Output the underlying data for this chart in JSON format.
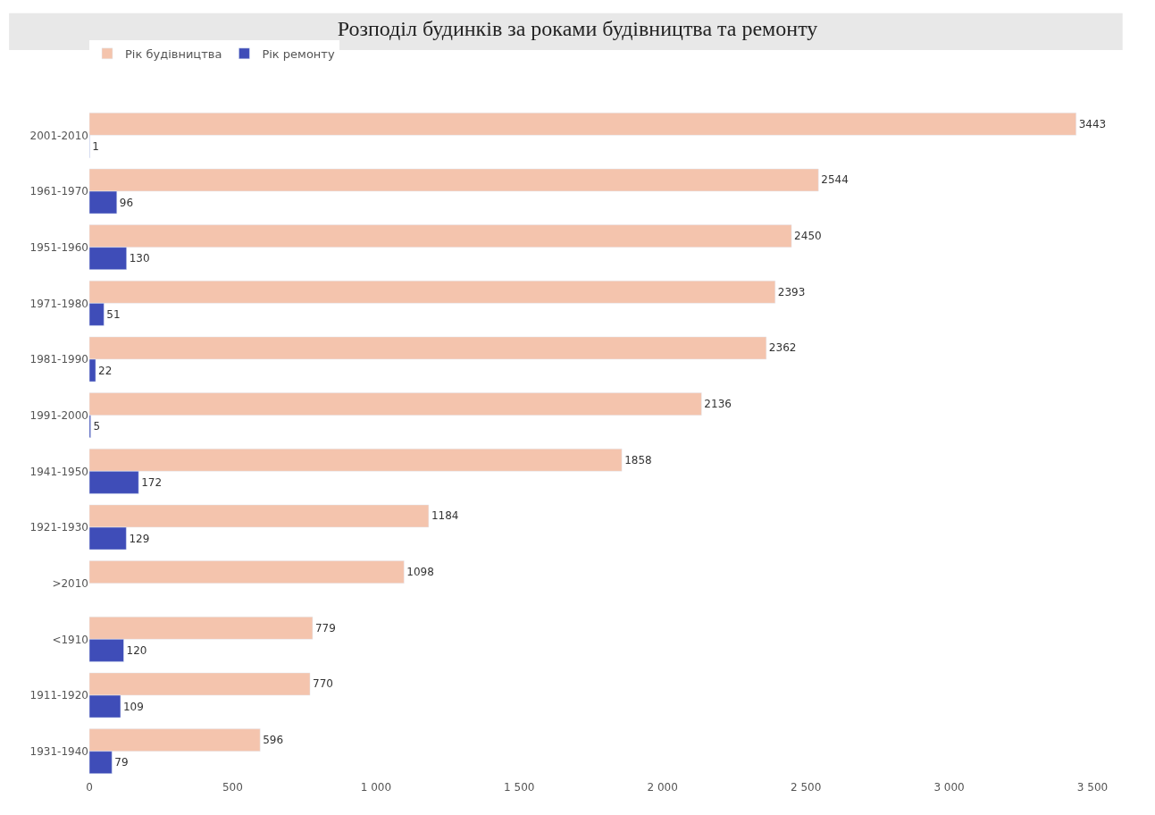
{
  "chart_data": {
    "type": "bar",
    "orientation": "horizontal",
    "title": "Розподіл будинків за роками будівництва та ремонту",
    "categories": [
      "2001-2010",
      "1961-1970",
      "1951-1960",
      "1971-1980",
      "1981-1990",
      "1991-2000",
      "1941-1950",
      "1921-1930",
      ">2010",
      "<1910",
      "1911-1920",
      "1931-1940"
    ],
    "series": [
      {
        "name": "Рік будівництва",
        "color": "#f4c4ad",
        "values": [
          3443,
          2544,
          2450,
          2393,
          2362,
          2136,
          1858,
          1184,
          1098,
          779,
          770,
          596
        ]
      },
      {
        "name": "Рік ремонту",
        "color": "#3f4db8",
        "values": [
          1,
          96,
          130,
          51,
          22,
          5,
          172,
          129,
          null,
          120,
          109,
          79
        ]
      }
    ],
    "xlim": [
      0,
      3500
    ],
    "xticks": [
      0,
      500,
      {
        "value": 1000,
        "label": "1 000"
      },
      {
        "value": 1500,
        "label": "1 500"
      },
      {
        "value": 2000,
        "label": "2 000"
      },
      {
        "value": 2500,
        "label": "2 500"
      },
      {
        "value": 3000,
        "label": "3 000"
      },
      {
        "value": 3500,
        "label": "3 500"
      }
    ],
    "data_labels": true,
    "legend": "top left"
  }
}
